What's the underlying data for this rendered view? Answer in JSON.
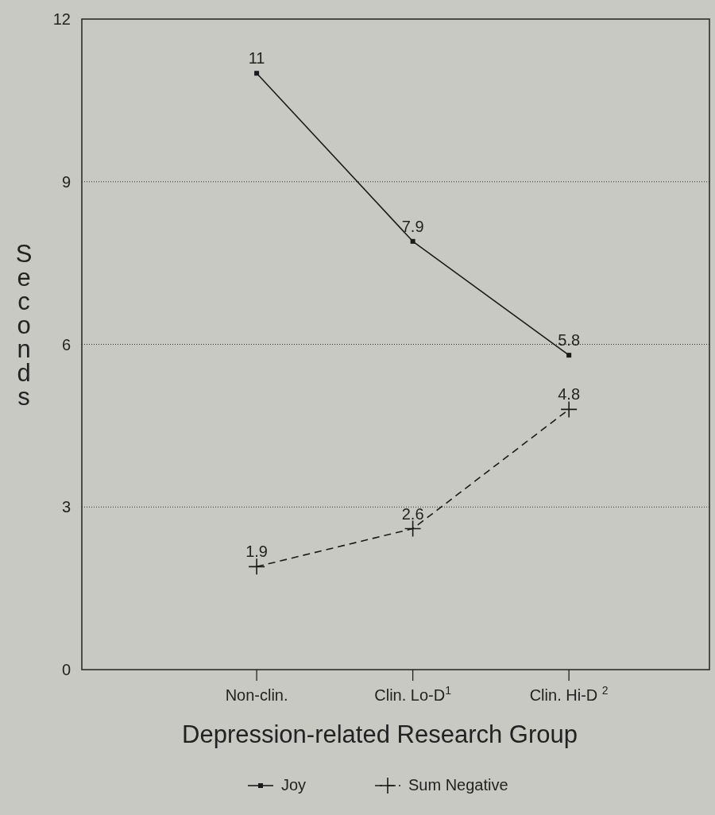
{
  "chart_data": {
    "type": "line",
    "xlabel": "Depression-related Research Group",
    "ylabel": "Seconds",
    "categories": [
      "Non-clin.",
      "Clin. Lo-D$^{1}$",
      "Clin. Hi-D $^{2}$"
    ],
    "series": [
      {
        "name": "Joy",
        "color": "#1a1a1a",
        "values": [
          11,
          7.9,
          5.8
        ],
        "marker": "square",
        "line_style": "solid"
      },
      {
        "name": "Sum Negative",
        "color": "#1a1a1a",
        "values": [
          1.9,
          2.6,
          4.8
        ],
        "marker": "cross",
        "line_style": "dashed"
      }
    ],
    "ylim": [
      0,
      12
    ],
    "yticks": [
      0,
      3,
      6,
      9,
      12
    ],
    "grid": "y",
    "data_labels": true,
    "legend": "bottom"
  }
}
